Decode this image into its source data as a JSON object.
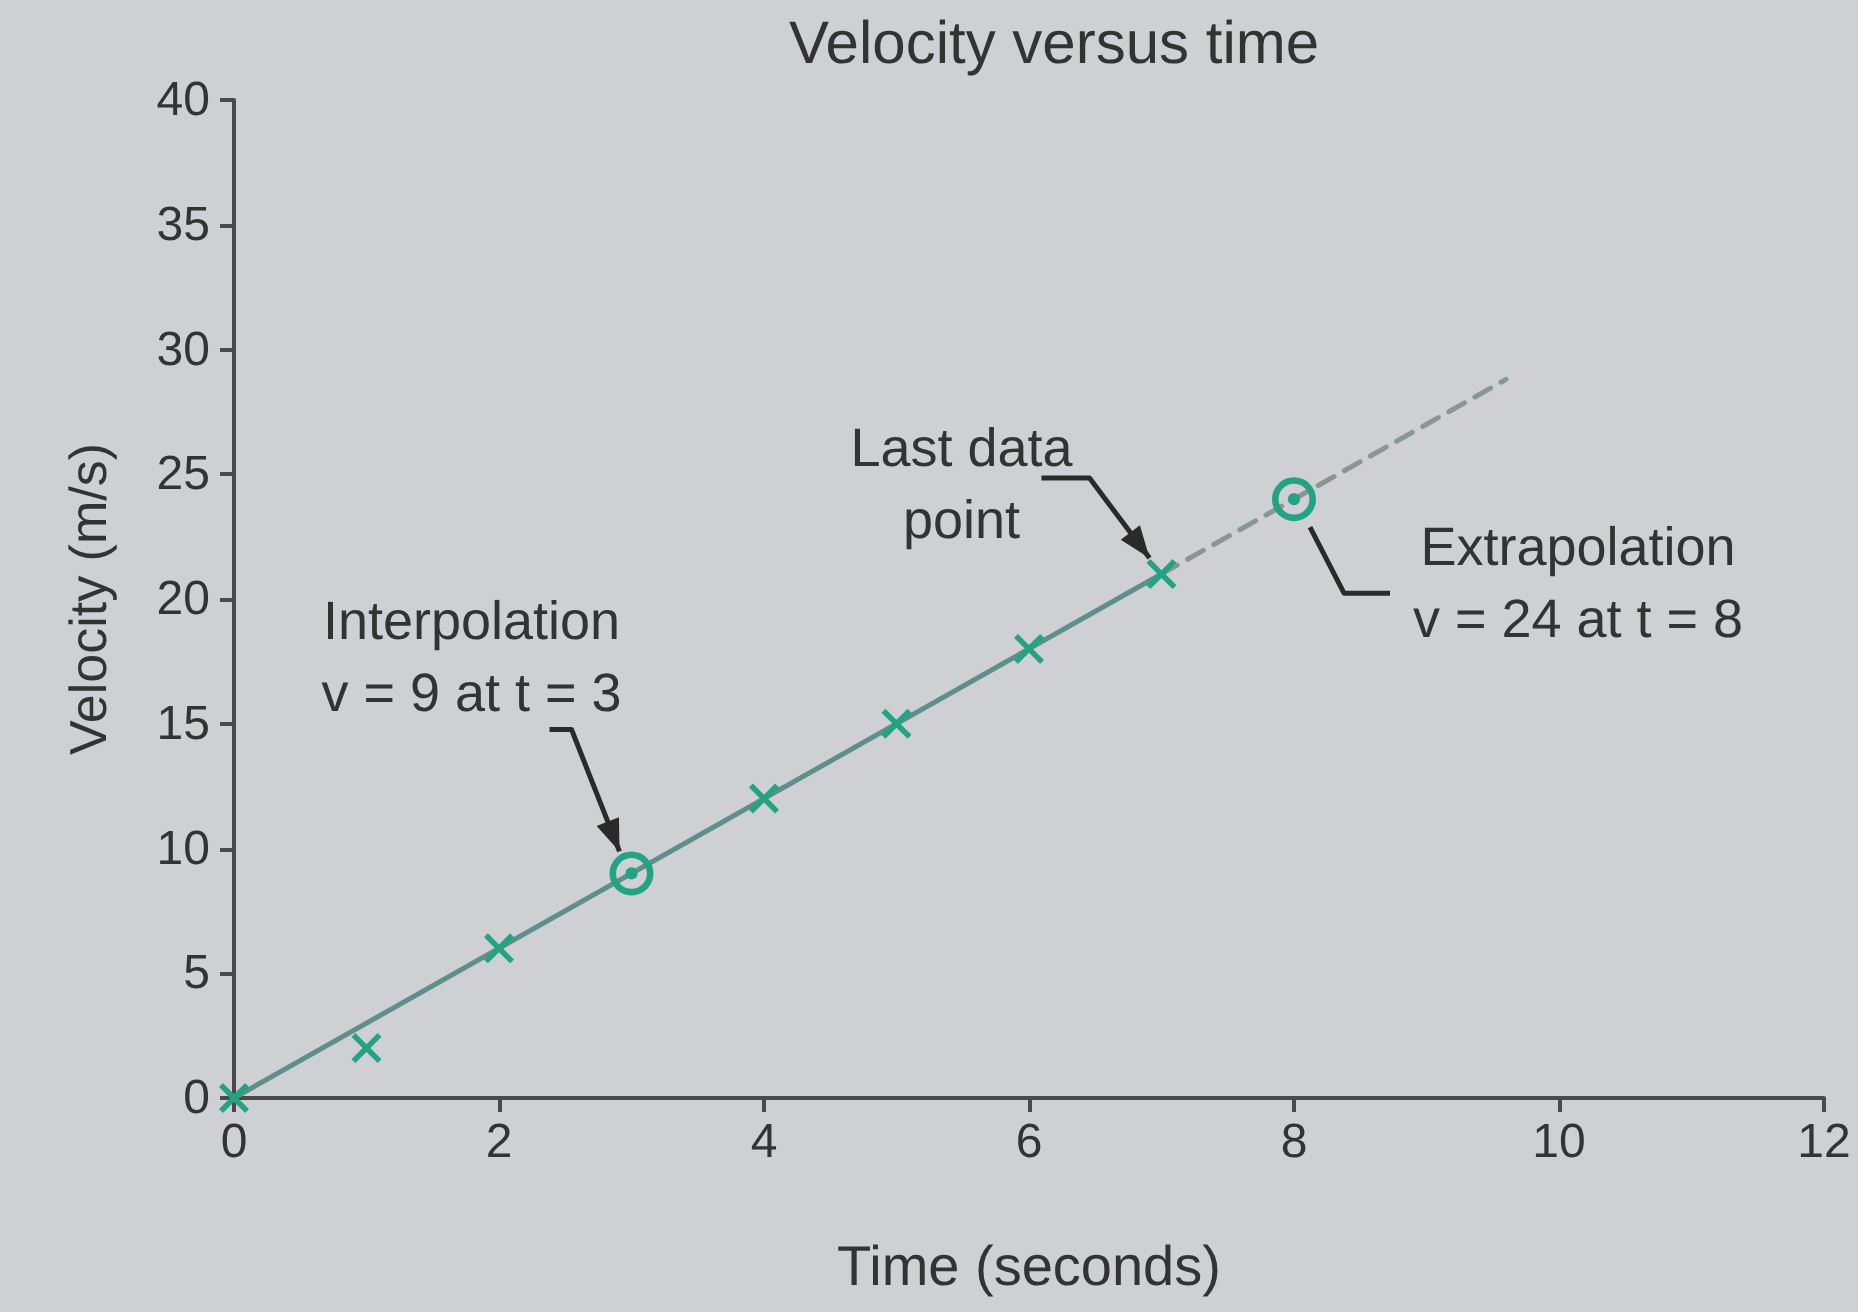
{
  "chart_data": {
    "type": "line",
    "title": "Velocity versus time",
    "xlabel": "Time (seconds)",
    "ylabel": "Velocity (m/s)",
    "xlim": [
      0,
      12
    ],
    "xticks": [
      0,
      2,
      4,
      6,
      8,
      10,
      12
    ],
    "ylim": [
      0,
      40
    ],
    "yticks": [
      0,
      5,
      10,
      15,
      20,
      25,
      30,
      35,
      40
    ],
    "grid": false,
    "series": [
      {
        "x": [
          0,
          7
        ],
        "values": [
          0,
          21
        ],
        "color": "#5e8f88",
        "marker": "none",
        "line_style": "solid"
      },
      {
        "x": [
          7,
          9.6
        ],
        "values": [
          21,
          28.8
        ],
        "color": "#8a9694",
        "marker": "none",
        "line_style": "dashed"
      },
      {
        "type": "scatter",
        "x": [
          0,
          1,
          2,
          4,
          5,
          6,
          7
        ],
        "values": [
          0,
          2,
          6,
          12,
          15,
          18,
          21
        ],
        "color": "#24a383",
        "marker": "cross"
      },
      {
        "type": "scatter",
        "x": [
          3,
          8
        ],
        "values": [
          9,
          24
        ],
        "color": "#24a383",
        "marker": "circle"
      }
    ],
    "annotations": [
      {
        "text": "Interpolation\nv = 9 at t = 3",
        "x": 3,
        "y": 9
      },
      {
        "text": "Last data\npoint",
        "x": 7,
        "y": 21
      },
      {
        "text": "Extrapolation\nv = 24 at t = 8",
        "x": 8,
        "y": 24
      }
    ]
  }
}
